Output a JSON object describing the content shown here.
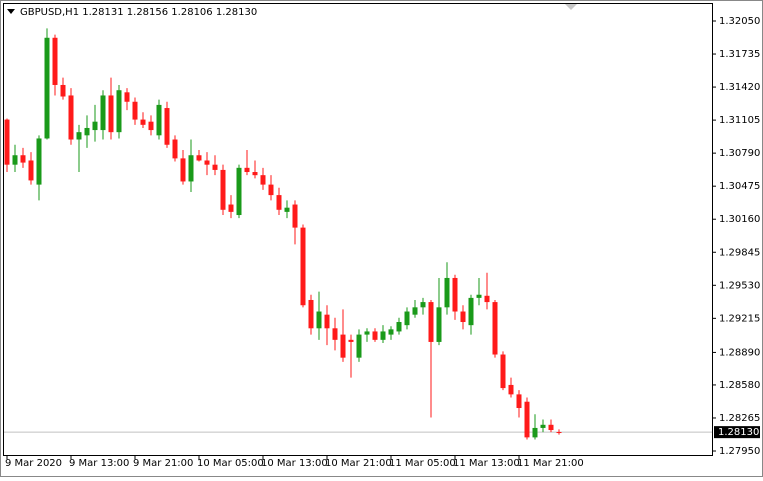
{
  "chart_data": {
    "type": "candlestick",
    "title": "GBPUSD,H1  1.28131 1.28156 1.28106 1.28130",
    "categories": [
      "9 Mar 2020",
      null,
      null,
      null,
      null,
      null,
      null,
      null,
      "9 Mar 13:00",
      null,
      null,
      null,
      null,
      null,
      null,
      null,
      "9 Mar 21:00",
      null,
      null,
      null,
      null,
      null,
      null,
      null,
      "10 Mar 05:00",
      null,
      null,
      null,
      null,
      null,
      null,
      null,
      "10 Mar 13:00",
      null,
      null,
      null,
      null,
      null,
      null,
      null,
      "10 Mar 21:00",
      null,
      null,
      null,
      null,
      null,
      null,
      null,
      "11 Mar 05:00",
      null,
      null,
      null,
      null,
      null,
      null,
      null,
      "11 Mar 13:00",
      null,
      null,
      null,
      null,
      null,
      null,
      null,
      "11 Mar 21:00",
      null,
      null,
      null,
      null,
      null
    ],
    "open": [
      1.3111,
      1.3068,
      1.3077,
      1.3072,
      1.3049,
      1.3093,
      1.3189,
      1.3144,
      1.3134,
      1.3092,
      1.3096,
      1.3101,
      1.3101,
      1.3134,
      1.3099,
      1.3137,
      1.3128,
      1.3111,
      1.3109,
      1.3096,
      1.3122,
      1.3092,
      1.3074,
      1.3052,
      1.3077,
      1.3072,
      1.3068,
      1.3063,
      1.303,
      1.302,
      1.3065,
      1.3061,
      1.3058,
      1.3049,
      1.3039,
      1.3023,
      1.303,
      1.3008,
      1.2939,
      1.2912,
      1.2925,
      1.2912,
      1.2906,
      1.2901,
      1.2884,
      1.2906,
      1.2909,
      1.2901,
      1.2906,
      1.2909,
      1.2915,
      1.2925,
      1.2932,
      1.2937,
      1.2899,
      1.2932,
      1.296,
      1.2928,
      1.2915,
      1.2941,
      1.2943,
      1.2937,
      1.2887,
      1.2858,
      1.2849,
      1.2842,
      1.2808,
      1.2817,
      1.282,
      1.28131
    ],
    "high": [
      1.3112,
      1.3087,
      1.3084,
      1.308,
      1.3096,
      1.3198,
      1.3192,
      1.3151,
      1.3141,
      1.3106,
      1.3115,
      1.3125,
      1.3139,
      1.3151,
      1.3144,
      1.3141,
      1.3132,
      1.3118,
      1.3115,
      1.313,
      1.3128,
      1.3096,
      1.3082,
      1.3092,
      1.3082,
      1.308,
      1.3077,
      1.3068,
      1.3039,
      1.3068,
      1.3082,
      1.3072,
      1.3065,
      1.3058,
      1.3046,
      1.3034,
      1.3034,
      1.3011,
      1.2944,
      1.2947,
      1.2934,
      1.2922,
      1.293,
      1.2906,
      1.2911,
      1.2912,
      1.2912,
      1.2915,
      1.2914,
      1.2922,
      1.2932,
      1.2939,
      1.2941,
      1.2939,
      1.296,
      1.2975,
      1.2963,
      1.2934,
      1.2944,
      1.296,
      1.2965,
      1.2939,
      1.289,
      1.2865,
      1.2853,
      1.2846,
      1.283,
      1.2825,
      1.2825,
      1.28156
    ],
    "low": [
      1.3061,
      1.3061,
      1.3065,
      1.3049,
      1.3034,
      1.3092,
      1.3134,
      1.313,
      1.3087,
      1.3061,
      1.3084,
      1.309,
      1.3092,
      1.3092,
      1.3093,
      1.312,
      1.3106,
      1.3103,
      1.3096,
      1.3092,
      1.3084,
      1.3071,
      1.3049,
      1.3042,
      1.3071,
      1.3058,
      1.3058,
      1.302,
      1.3017,
      1.3017,
      1.3058,
      1.3055,
      1.3044,
      1.3034,
      1.302,
      1.3017,
      1.2992,
      1.2932,
      1.2906,
      1.2901,
      1.2896,
      1.2891,
      1.288,
      1.2865,
      1.288,
      1.2899,
      1.2899,
      1.2898,
      1.2901,
      1.2906,
      1.2911,
      1.2922,
      1.2925,
      1.2827,
      1.2896,
      1.2925,
      1.292,
      1.2911,
      1.2906,
      1.2934,
      1.293,
      1.2884,
      1.2853,
      1.2846,
      1.2827,
      1.2806,
      1.2806,
      1.2813,
      1.2813,
      1.28106
    ],
    "close": [
      1.3068,
      1.3077,
      1.307,
      1.3053,
      1.3093,
      1.3189,
      1.3144,
      1.3133,
      1.3092,
      1.3099,
      1.3103,
      1.3109,
      1.3134,
      1.3099,
      1.3139,
      1.3128,
      1.3111,
      1.3106,
      1.3101,
      1.3125,
      1.3087,
      1.3074,
      1.3052,
      1.3077,
      1.3072,
      1.3068,
      1.3063,
      1.3025,
      1.3023,
      1.3065,
      1.3061,
      1.3058,
      1.3049,
      1.3039,
      1.3025,
      1.3027,
      1.3008,
      1.2934,
      1.2912,
      1.2928,
      1.2912,
      1.2901,
      1.2884,
      1.2899,
      1.2906,
      1.2909,
      1.2901,
      1.2909,
      1.2911,
      1.2918,
      1.2928,
      1.2932,
      1.2937,
      1.2899,
      1.2932,
      1.296,
      1.2928,
      1.2918,
      1.2941,
      1.2944,
      1.2937,
      1.2887,
      1.2855,
      1.2849,
      1.2836,
      1.2808,
      1.2817,
      1.282,
      1.2815,
      1.2813
    ],
    "up_color": "#1a9a1a",
    "down_color": "#ff1a1a",
    "current_price": {
      "value": 1.2813,
      "label": "1.28130"
    },
    "ylim": [
      1.27912,
      1.32212
    ],
    "yticks": [
      {
        "value": 1.3205,
        "label": "1.32050"
      },
      {
        "value": 1.31735,
        "label": "1.31735"
      },
      {
        "value": 1.3142,
        "label": "1.31420"
      },
      {
        "value": 1.31105,
        "label": "1.31105"
      },
      {
        "value": 1.3079,
        "label": "1.30790"
      },
      {
        "value": 1.30475,
        "label": "1.30475"
      },
      {
        "value": 1.3016,
        "label": "1.30160"
      },
      {
        "value": 1.29845,
        "label": "1.29845"
      },
      {
        "value": 1.2953,
        "label": "1.29530"
      },
      {
        "value": 1.29215,
        "label": "1.29215"
      },
      {
        "value": 1.2889,
        "label": "1.28890"
      },
      {
        "value": 1.2858,
        "label": "1.28580"
      },
      {
        "value": 1.28265,
        "label": "1.28265"
      },
      {
        "value": 1.2795,
        "label": "1.27950"
      }
    ],
    "grid": false
  }
}
